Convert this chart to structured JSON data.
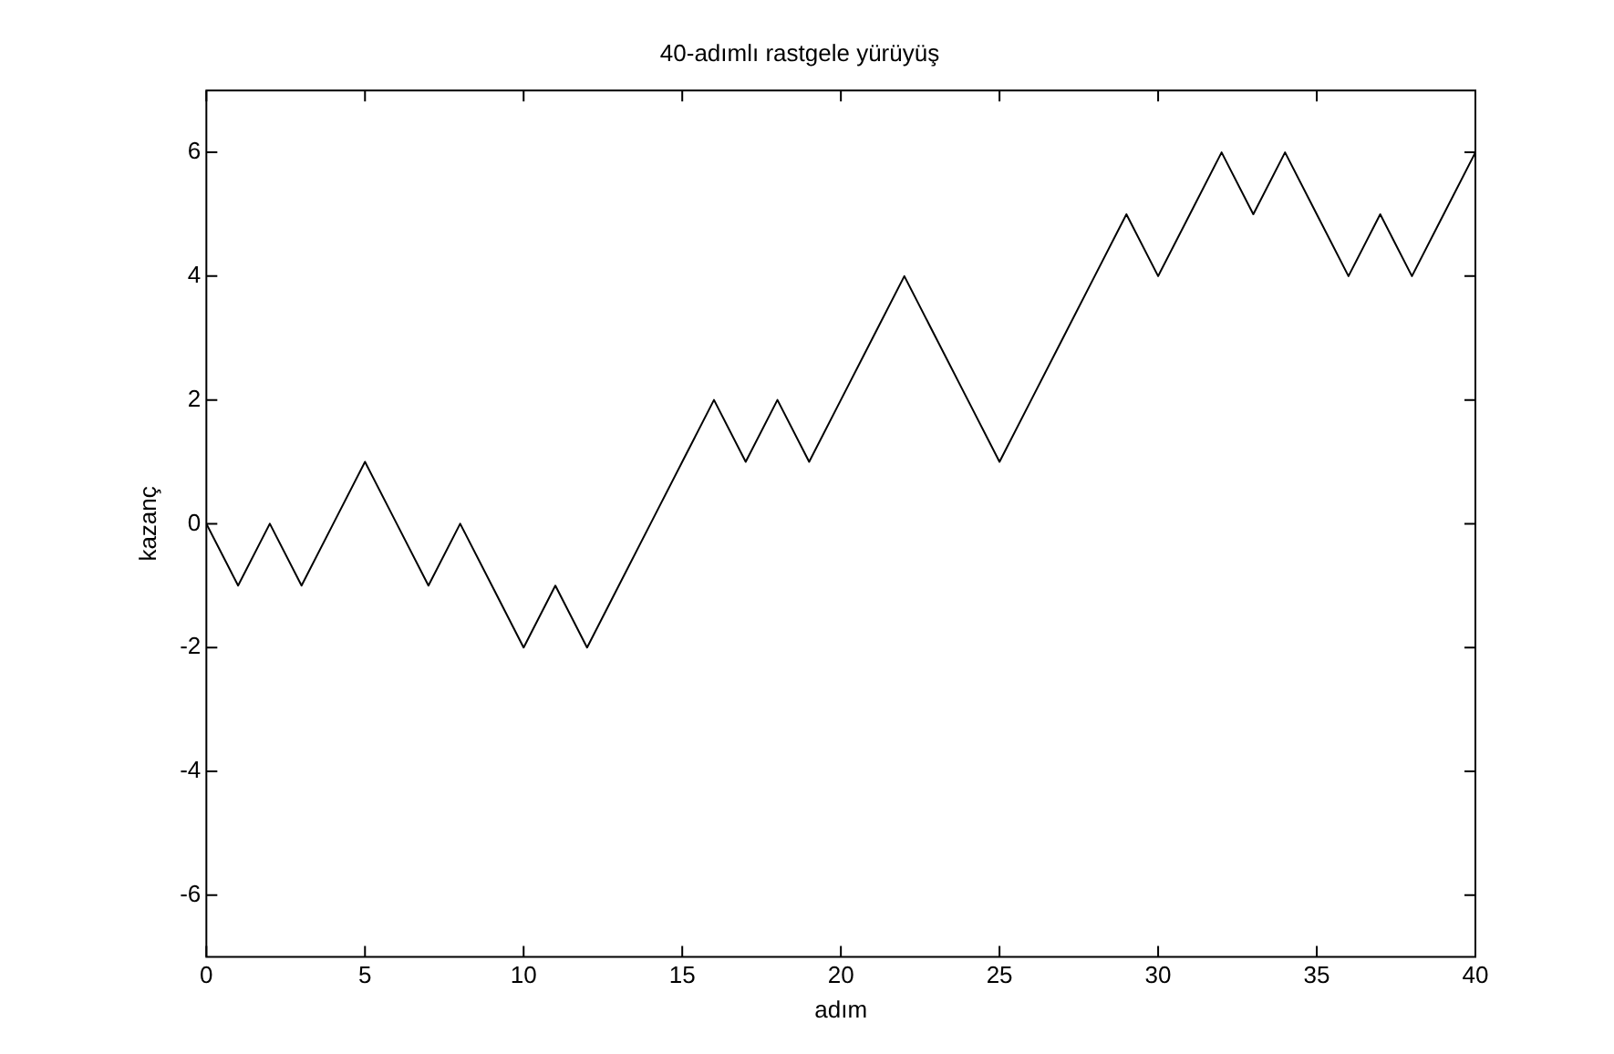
{
  "chart_data": {
    "type": "line",
    "title": "40-adımlı rastgele yürüyüş",
    "xlabel": "adım",
    "ylabel": "kazanç",
    "x": [
      0,
      1,
      2,
      3,
      4,
      5,
      6,
      7,
      8,
      9,
      10,
      11,
      12,
      13,
      14,
      15,
      16,
      17,
      18,
      19,
      20,
      21,
      22,
      23,
      24,
      25,
      26,
      27,
      28,
      29,
      30,
      31,
      32,
      33,
      34,
      35,
      36,
      37,
      38,
      39,
      40
    ],
    "series": [
      {
        "color": "#000000",
        "values": [
          0,
          -1,
          0,
          -1,
          0,
          1,
          0,
          -1,
          0,
          -1,
          -2,
          -1,
          -2,
          -1,
          0,
          1,
          2,
          1,
          2,
          1,
          2,
          3,
          4,
          3,
          2,
          1,
          2,
          3,
          4,
          5,
          4,
          5,
          6,
          5,
          6,
          5,
          4,
          5,
          4,
          5,
          6
        ]
      }
    ],
    "xlim": [
      0,
      40
    ],
    "xticks": [
      0,
      5,
      10,
      15,
      20,
      25,
      30,
      35,
      40
    ],
    "ylim": [
      -7,
      7
    ],
    "yticks": [
      -6,
      -4,
      -2,
      0,
      2,
      4,
      6
    ],
    "grid": false,
    "legend": false,
    "marker": "none",
    "line_style": "solid"
  }
}
